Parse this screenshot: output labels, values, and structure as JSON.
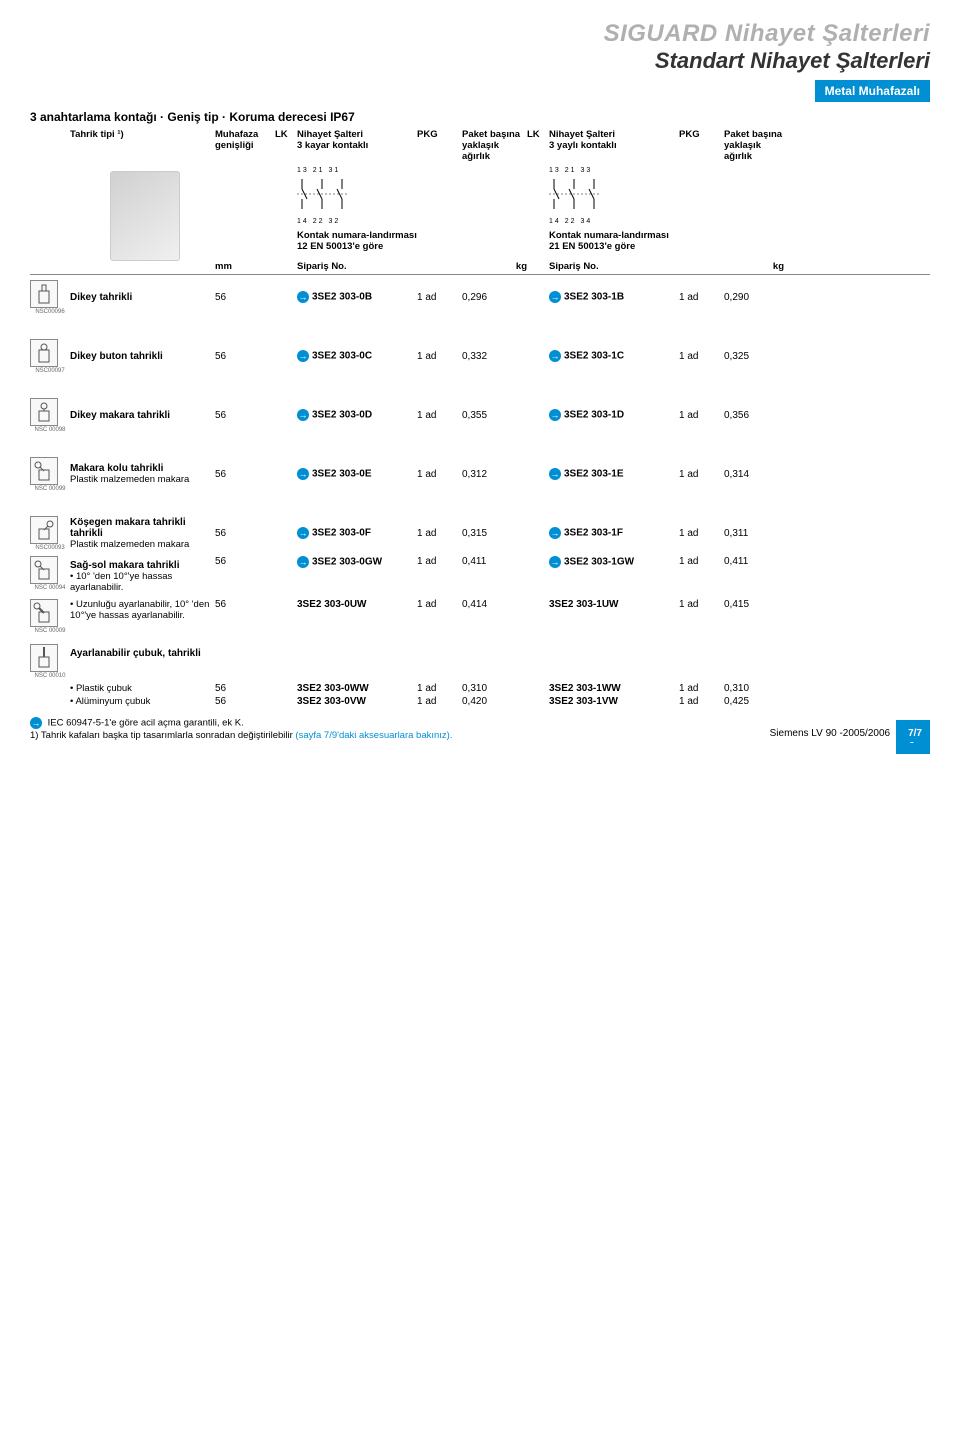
{
  "title_main": "SIGUARD Nihayet Şalterleri",
  "title_sub": "Standart Nihayet Şalterleri",
  "title_bar": "Metal Muhafazalı",
  "subtitle": "3 anahtarlama kontağı · Geniş tip · Koruma derecesi IP67",
  "header": {
    "tahrik": "Tahrik tipi ¹)",
    "muhafaza": "Muhafaza genişliği",
    "lk": "LK",
    "h1_line1": "Nihayet Şalteri",
    "h1_line2": "3 kayar kontaklı",
    "pkg": "PKG",
    "paket": "Paket başına yaklaşık ağırlık",
    "h2_line1": "Nihayet Şalteri",
    "h2_line2": "3 yaylı kontaklı",
    "diag1_top": "13 21 31",
    "diag1_bot": "14 22 32",
    "diag1_code": "NSC00105",
    "diag2_top": "13 21 33",
    "diag2_bot": "14 22 34",
    "diag2_code": "NSC00106",
    "contact1": "Kontak numara-landırması 12 EN 50013'e göre",
    "contact2": "Kontak numara-landırması 21 EN 50013'e göre",
    "mm": "mm",
    "siparis": "Sipariş No.",
    "kg": "kg"
  },
  "rows": [
    {
      "icon": "plunger",
      "iconcode": "NSC00096",
      "desc": "Dikey tahrikli",
      "mm": "56",
      "a1": true,
      "o1": "3SE2 303-0B",
      "p1": "1 ad",
      "w1": "0,296",
      "a2": true,
      "o2": "3SE2 303-1B",
      "p2": "1 ad",
      "w2": "0,290"
    },
    {
      "icon": "button",
      "iconcode": "NSC00097",
      "desc": "Dikey buton tahrikli",
      "mm": "56",
      "a1": true,
      "o1": "3SE2 303-0C",
      "p1": "1 ad",
      "w1": "0,332",
      "a2": true,
      "o2": "3SE2 303-1C",
      "p2": "1 ad",
      "w2": "0,325"
    },
    {
      "icon": "roller-plunger",
      "iconcode": "NSC 00098",
      "desc": "Dikey makara tahrikli",
      "mm": "56",
      "a1": true,
      "o1": "3SE2 303-0D",
      "p1": "1 ad",
      "w1": "0,355",
      "a2": true,
      "o2": "3SE2 303-1D",
      "p2": "1 ad",
      "w2": "0,356"
    },
    {
      "icon": "roller-lever",
      "iconcode": "NSC 00099",
      "desc": "Makara kolu tahrikli",
      "sub": "Plastik malzemeden makara",
      "mm": "56",
      "a1": true,
      "o1": "3SE2 303-0E",
      "p1": "1 ad",
      "w1": "0,312",
      "a2": true,
      "o2": "3SE2 303-1E",
      "p2": "1 ad",
      "w2": "0,314"
    },
    {
      "icon": "angle-roller",
      "iconcode": "NSC00093",
      "desc": "Köşegen makara tahrikli tahrikli",
      "sub": "Plastik malzemeden makara",
      "mm": "56",
      "a1": true,
      "o1": "3SE2 303-0F",
      "p1": "1 ad",
      "w1": "0,315",
      "a2": true,
      "o2": "3SE2 303-1F",
      "p2": "1 ad",
      "w2": "0,311"
    }
  ],
  "section_sag": "Sağ-sol makara tahrikli",
  "row_gw": {
    "icon": "lever",
    "iconcode": "NSC 00094",
    "desc": "• 10° 'den 10°'ye hassas ayarlanabilir.",
    "mm": "56",
    "a1": true,
    "o1": "3SE2 303-0GW",
    "p1": "1 ad",
    "w1": "0,411",
    "a2": true,
    "o2": "3SE2 303-1GW",
    "p2": "1 ad",
    "w2": "0,411"
  },
  "row_uw": {
    "icon": "lever-adj",
    "iconcode": "NSC 00009",
    "desc": "• Uzunluğu ayarlanabilir, 10° 'den 10°'ye hassas ayarlanabilir.",
    "mm": "56",
    "a1": false,
    "o1": "3SE2 303-0UW",
    "p1": "1 ad",
    "w1": "0,414",
    "a2": false,
    "o2": "3SE2 303-1UW",
    "p2": "1 ad",
    "w2": "0,415"
  },
  "section_rod": "Ayarlanabilir çubuk, tahrikli",
  "row_ww": {
    "icon": "rod",
    "iconcode": "NSC 00010",
    "desc": "• Plastik çubuk",
    "mm": "56",
    "a1": false,
    "o1": "3SE2 303-0WW",
    "p1": "1 ad",
    "w1": "0,310",
    "a2": false,
    "o2": "3SE2 303-1WW",
    "p2": "1 ad",
    "w2": "0,310"
  },
  "row_vw": {
    "desc": "• Alüminyum çubuk",
    "mm": "56",
    "a1": false,
    "o1": "3SE2 303-0VW",
    "p1": "1 ad",
    "w1": "0,420",
    "a2": false,
    "o2": "3SE2 303-1VW",
    "p2": "1 ad",
    "w2": "0,425"
  },
  "footnote_iec": "IEC 60947-5-1'e göre acil açma garantili, ek K.",
  "footnote_1a": "1) Tahrik kafaları başka tip tasarımlarla sonradan değiştirilebilir ",
  "footnote_1b": "(sayfa 7/9'daki aksesuarlara bakınız).",
  "section_tab": "7",
  "footer_text": "Siemens LV 90 -2005/2006",
  "footer_page": "7/7"
}
